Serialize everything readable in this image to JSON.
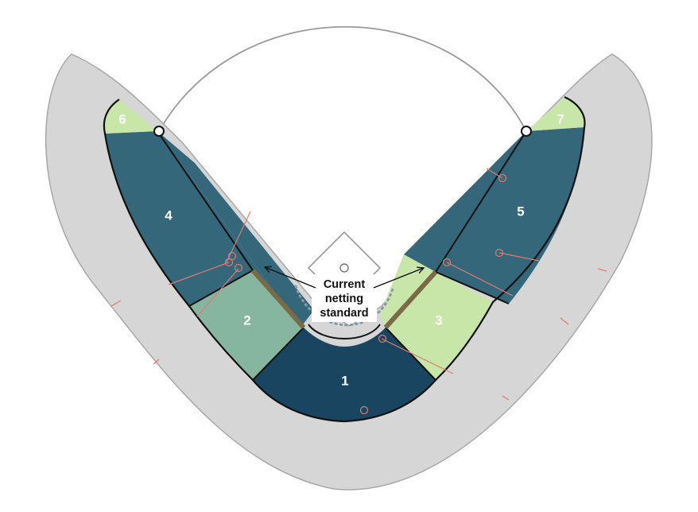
{
  "colors": {
    "concourse": "#d6d6d6",
    "concourse_stroke": "#a8a8a8",
    "field_line": "#9a9a9a",
    "outline": "#111111",
    "dark_navy": "#1a4560",
    "teal": "#34677a",
    "sage": "#86b6a0",
    "light_green": "#c8e6a8",
    "netting": "#7a6a48",
    "marker": "#e07a70",
    "dots": "#8899a6"
  },
  "sections": [
    {
      "label": "1",
      "color": "dark_navy"
    },
    {
      "label": "2",
      "color": "sage"
    },
    {
      "label": "3",
      "color": "light_green"
    },
    {
      "label": "4",
      "color": "teal"
    },
    {
      "label": "5",
      "color": "teal"
    },
    {
      "label": "6",
      "color": "light_green"
    },
    {
      "label": "7",
      "color": "light_green"
    }
  ],
  "annotation": {
    "line1": "Current",
    "line2": "netting",
    "line3": "standard"
  }
}
